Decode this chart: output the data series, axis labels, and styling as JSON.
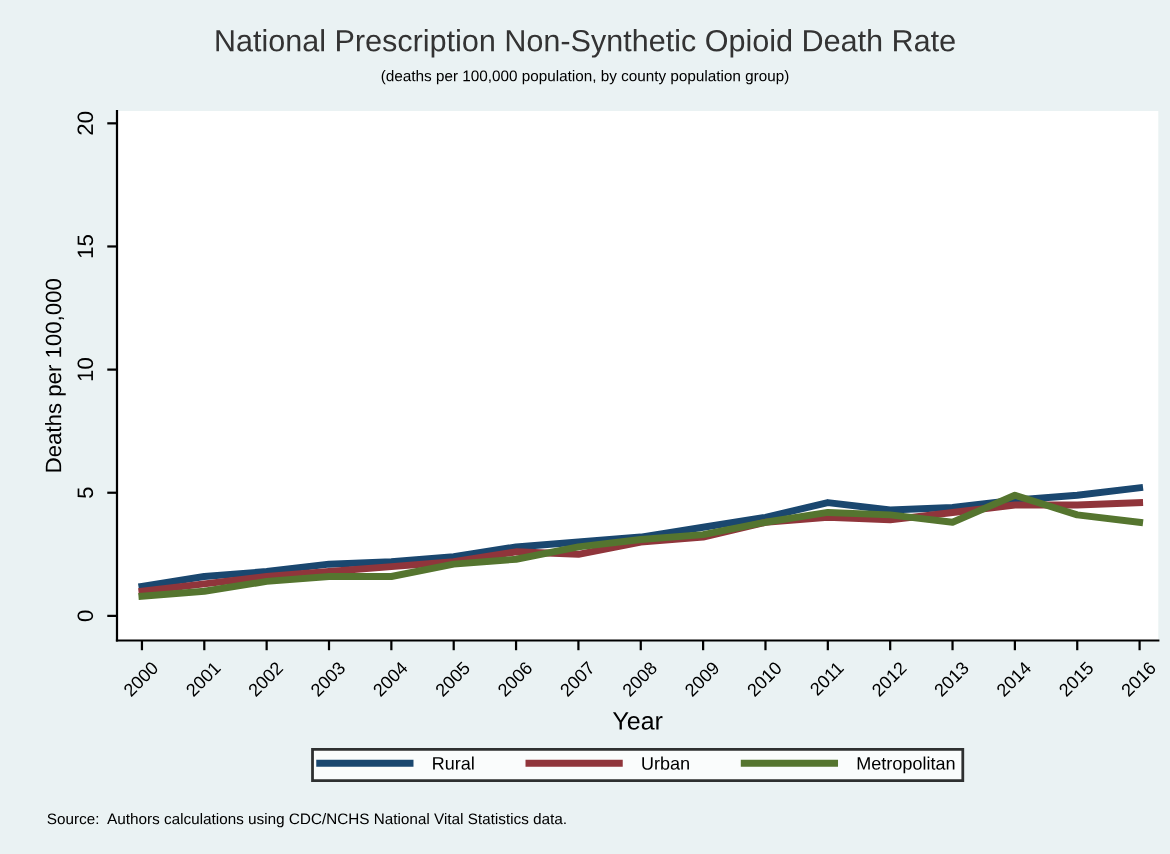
{
  "chart_data": {
    "type": "line",
    "title": "National Prescription Non-Synthetic Opioid Death Rate",
    "subtitle": "(deaths per 100,000 population, by county population group)",
    "xlabel": "Year",
    "ylabel": "Deaths per 100,000",
    "x": [
      2000,
      2001,
      2002,
      2003,
      2004,
      2005,
      2006,
      2007,
      2008,
      2009,
      2010,
      2011,
      2012,
      2013,
      2014,
      2015,
      2016
    ],
    "series": [
      {
        "name": "Rural",
        "color": "#1a476f",
        "values": [
          1.2,
          1.6,
          1.8,
          2.1,
          2.2,
          2.4,
          2.8,
          3.0,
          3.2,
          3.6,
          4.0,
          4.6,
          4.3,
          4.4,
          4.7,
          4.9,
          5.2
        ]
      },
      {
        "name": "Urban",
        "color": "#90353b",
        "values": [
          1.0,
          1.3,
          1.6,
          1.8,
          2.0,
          2.2,
          2.6,
          2.5,
          3.0,
          3.2,
          3.8,
          4.0,
          3.9,
          4.2,
          4.5,
          4.5,
          4.6
        ]
      },
      {
        "name": "Metropolitan",
        "color": "#55752f",
        "values": [
          0.8,
          1.0,
          1.4,
          1.6,
          1.6,
          2.1,
          2.3,
          2.8,
          3.1,
          3.3,
          3.8,
          4.2,
          4.1,
          3.8,
          4.9,
          4.1,
          3.8
        ]
      }
    ],
    "xlim": [
      1999.6,
      2016.3
    ],
    "xticks": [
      2000,
      2001,
      2002,
      2003,
      2004,
      2005,
      2006,
      2007,
      2008,
      2009,
      2010,
      2011,
      2012,
      2013,
      2014,
      2015,
      2016
    ],
    "ylim": [
      -1,
      20.5
    ],
    "yticks": [
      0,
      5,
      10,
      15,
      20
    ],
    "legend": "bottom",
    "grid": false,
    "annotations": [
      "Source:  Authors calculations using CDC/NCHS National Vital Statistics data."
    ]
  }
}
